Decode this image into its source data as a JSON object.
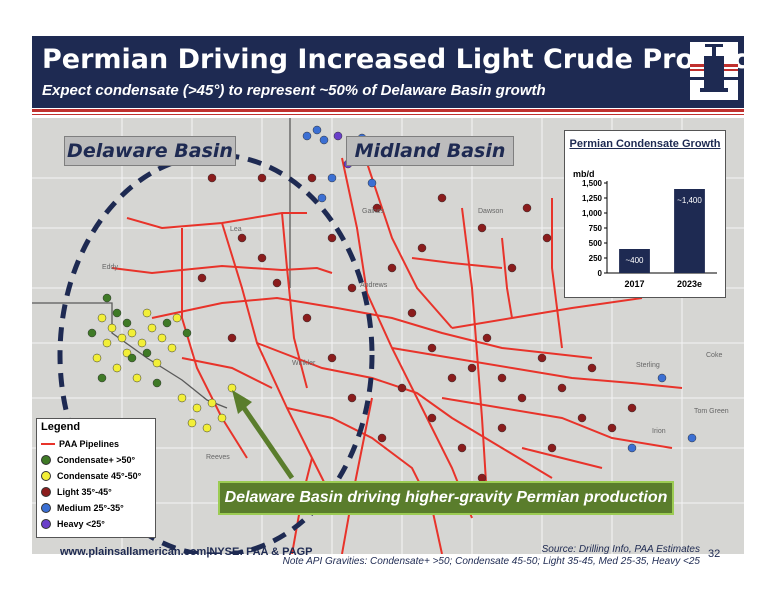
{
  "header": {
    "title": "Permian Driving Increased Light Crude Production",
    "subtitle": "Expect condensate (>45°) to represent ~50% of Delaware Basin growth"
  },
  "map": {
    "basins": [
      "Delaware Basin",
      "Midland Basin"
    ],
    "place_labels": [
      "Lea",
      "Eddy",
      "Gaines",
      "Dawson",
      "Andrews",
      "Winkler",
      "Reeves",
      "Sterling",
      "Coke",
      "Tom Green",
      "Irion"
    ]
  },
  "legend": {
    "title": "Legend",
    "items": [
      {
        "label": "PAA Pipelines",
        "color": "#e8332a",
        "kind": "line"
      },
      {
        "label": "Condensate+ >50°",
        "color": "#3f7a26",
        "kind": "dot"
      },
      {
        "label": "Condensate 45°-50°",
        "color": "#f2ef38",
        "kind": "dot"
      },
      {
        "label": "Light 35°-45°",
        "color": "#8b1c1c",
        "kind": "dot"
      },
      {
        "label": "Medium 25°-35°",
        "color": "#3b6fd3",
        "kind": "dot"
      },
      {
        "label": "Heavy <25°",
        "color": "#6a3fc9",
        "kind": "dot"
      }
    ]
  },
  "inset": {
    "title": "Permian Condensate Growth",
    "unit": "mb/d"
  },
  "chart_data": {
    "type": "bar",
    "title": "Permian Condensate Growth",
    "ylabel": "mb/d",
    "categories": [
      "2017",
      "2023e"
    ],
    "values": [
      400,
      1400
    ],
    "data_labels": [
      "~400",
      "~1,400"
    ],
    "ylim": [
      0,
      1500
    ],
    "yticks": [
      0,
      250,
      500,
      750,
      1000,
      1250,
      1500
    ],
    "ytick_labels": [
      "0",
      "250",
      "500",
      "750",
      "1,000",
      "1,250",
      "1,500"
    ],
    "bar_color": "#1e2a52"
  },
  "banner": "Delaware Basin driving higher-gravity Permian production",
  "footer": {
    "url": "www.plainsallamerican.com",
    "separator": "|",
    "ticker": "NYSE: PAA & PAGP",
    "source": "Source: Drilling Info, PAA Estimates",
    "note": "Note API Gravities: Condensate+ >50; Condensate 45-50; Light 35-45, Med 25-35, Heavy <25",
    "page": "32"
  },
  "colors": {
    "navy": "#1e2a52",
    "accent_red": "#c0302e",
    "pipeline_red": "#e8332a",
    "banner_green": "#5a7d2c",
    "map_gray": "#d6d6d3"
  }
}
